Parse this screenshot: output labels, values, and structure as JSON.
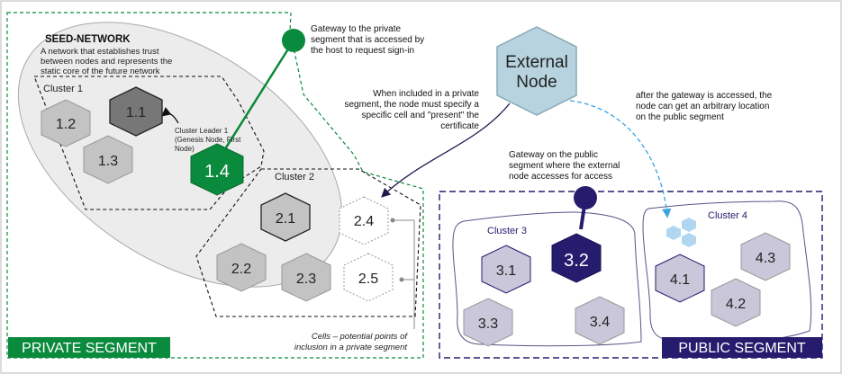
{
  "seed_network": {
    "title": "SEED-NETWORK",
    "desc": [
      "A network that establishes trust",
      "between nodes and represents the",
      "static core of the future network"
    ]
  },
  "cluster1": {
    "label": "Cluster 1",
    "nodes": [
      "1.1",
      "1.2",
      "1.3",
      "1.4"
    ],
    "leader_note": [
      "Cluster Leader 1",
      "(Genesis Node, First",
      "Node)"
    ]
  },
  "cluster2": {
    "label": "Cluster 2",
    "nodes": [
      "2.1",
      "2.2",
      "2.3",
      "2.4",
      "2.5"
    ]
  },
  "cluster3": {
    "label": "Cluster 3",
    "nodes": [
      "3.1",
      "3.2",
      "3.3",
      "3.4"
    ]
  },
  "cluster4": {
    "label": "Cluster 4",
    "nodes": [
      "4.1",
      "4.2",
      "4.3"
    ]
  },
  "external_node": [
    "External",
    "Node"
  ],
  "annotations": {
    "private_gateway": [
      "Gateway to the private",
      "segment that is accessed by",
      "the host to request sign-in"
    ],
    "private_include": [
      "When included in a private",
      "segment, the node must specify a",
      "specific cell and \"present\" the",
      "certificate"
    ],
    "public_access": [
      "after the gateway is accessed, the",
      "node can get an arbitrary location",
      "on the public segment"
    ],
    "public_gateway": [
      "Gateway on the public",
      "segment where the external",
      "node accesses for access"
    ],
    "cells": [
      "Cells – potential points of",
      "inclusion in a private segment"
    ]
  },
  "segments": {
    "private": "PRIVATE SEGMENT",
    "public": "PUBLIC SEGMENT"
  },
  "colors": {
    "private_green": "#0a8a3c",
    "public_navy": "#251c6e",
    "hex_gray": "#c3c3c3",
    "hex_dark": "#7a7a7a",
    "public_hex": "#c9c7d9",
    "external_hex": "#b7d3df",
    "light_blue": "#b0d6f0"
  }
}
